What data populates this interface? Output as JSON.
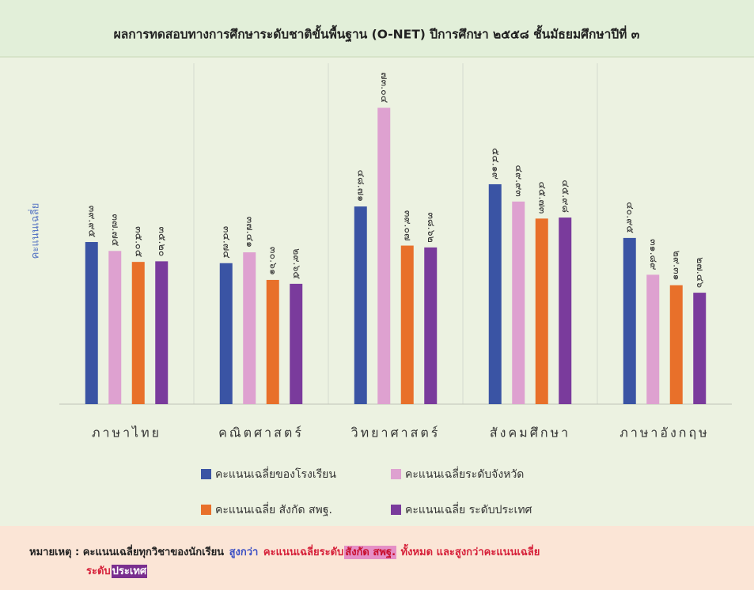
{
  "chart_data": {
    "type": "bar",
    "title": "ผลการทดสอบทางการศึกษาระดับชาติขั้นพื้นฐาน (O-NET) ปีการศึกษา ๒๕๕๘ ชั้นมัธยมศึกษาปีที่ ๓",
    "y_label": "คะแนนเฉลี่ย",
    "categories": [
      "ภาษาไทย",
      "คณิตศาสตร์",
      "วิทยาศาสตร์",
      "สังคมศึกษา",
      "ภาษาอังกฤษ"
    ],
    "ylim": [
      0,
      84
    ],
    "series": [
      {
        "name": "คะแนนเฉลี่ยของโรงเรียน",
        "color": "#3a54a4",
        "values": [
          39.95,
          34.74,
          48.71,
          54.19,
          40.95
        ],
        "value_labels": [
          "๓๙.๙๕",
          "๓๔.๗๔",
          "๔๘.๗๑",
          "๕๔.๑๙",
          "๔๐.๙๕"
        ]
      },
      {
        "name": "คะแนนเฉลี่ยระดับจังหวัด",
        "color": "#dea1d0",
        "values": [
          37.75,
          37.41,
          73.04,
          49.93,
          31.89
        ],
        "value_labels": [
          "๓๗.๗๕",
          "๓๗.๔๑",
          "๗๓.๐๔",
          "๔๙.๙๓",
          "๓๑.๘๙"
        ]
      },
      {
        "name": "คะแนนเฉลี่ย สังกัด สพฐ.",
        "color": "#e8702a",
        "values": [
          35.05,
          30.61,
          39.07,
          45.73,
          29.31
        ],
        "value_labels": [
          "๓๕.๐๕",
          "๓๐.๖๑",
          "๓๙.๐๗",
          "๔๕.๗๓",
          "๒๙.๓๑"
        ]
      },
      {
        "name": "คะแนนเฉลี่ย ระดับประเทศ",
        "color": "#7a3b9c",
        "values": [
          35.2,
          29.65,
          38.62,
          45.98,
          27.46
        ],
        "value_labels": [
          "๓๕.๒๐",
          "๒๙.๖๕",
          "๓๘.๖๒",
          "๔๕.๙๘",
          "๒๗.๔๖"
        ]
      }
    ]
  },
  "note": {
    "parts": [
      {
        "text": "หมายเหตุ : คะแนนเฉลี่ยทุกวิชาของนักเรียน ",
        "color": "#222222"
      },
      {
        "text": "สูงกว่า",
        "color": "#3b4fc4"
      },
      {
        "text": " คะแนนเฉลี่ยระดับ",
        "color": "#d6213a"
      },
      {
        "text": "สังกัด สพฐ.",
        "color": "#c8102e",
        "background": "#e58fc6"
      },
      {
        "text": " ทั้งหมด และสูงกว่าคะแนนเฉลี่ย",
        "color": "#d6213a"
      },
      {
        "text": "ระดับ",
        "color": "#d6213a",
        "break": true
      },
      {
        "text": "ประเทศ",
        "color": "#ffffff",
        "background": "#7a2f8f"
      }
    ]
  }
}
